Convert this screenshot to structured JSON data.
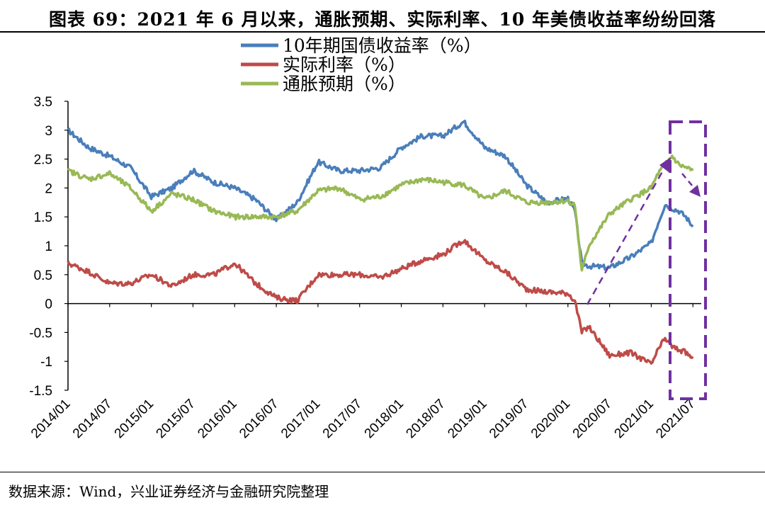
{
  "header": {
    "title": "图表 69：2021 年 6 月以来，通胀预期、实际利率、10 年美债收益率纷纷回落"
  },
  "footer": {
    "source": "数据来源：Wind，兴业证券经济与金融研究院整理"
  },
  "colors": {
    "yield": "#4a7ebb",
    "real": "#be4b48",
    "inflation": "#98b954",
    "annotation": "#7030a0"
  },
  "chart_data": {
    "type": "line",
    "title": "",
    "xlabel": "",
    "ylabel": "",
    "ylim": [
      -1.5,
      3.5
    ],
    "yticks": [
      "3.5",
      "3",
      "2.5",
      "2",
      "1.5",
      "1",
      "0.5",
      "0",
      "-0.5",
      "-1",
      "-1.5"
    ],
    "xticks": [
      "2014/01",
      "2014/07",
      "2015/01",
      "2015/07",
      "2016/01",
      "2016/07",
      "2017/01",
      "2017/07",
      "2018/01",
      "2018/07",
      "2019/01",
      "2019/07",
      "2020/01",
      "2020/07",
      "2021/01",
      "2021/07"
    ],
    "grid": false,
    "legend_position": "top",
    "x": [
      "2014/01",
      "2014/04",
      "2014/07",
      "2014/10",
      "2015/01",
      "2015/04",
      "2015/07",
      "2015/10",
      "2016/01",
      "2016/04",
      "2016/07",
      "2016/10",
      "2017/01",
      "2017/04",
      "2017/07",
      "2017/10",
      "2018/01",
      "2018/04",
      "2018/07",
      "2018/10",
      "2019/01",
      "2019/04",
      "2019/07",
      "2019/10",
      "2020/01",
      "2020/02",
      "2020/03",
      "2020/04",
      "2020/07",
      "2020/10",
      "2021/01",
      "2021/02",
      "2021/03",
      "2021/04",
      "2021/05",
      "2021/06",
      "2021/07"
    ],
    "series": [
      {
        "name": "10年期国债收益率（%）",
        "values": [
          3.0,
          2.7,
          2.55,
          2.35,
          1.85,
          2.0,
          2.3,
          2.1,
          2.0,
          1.8,
          1.45,
          1.75,
          2.45,
          2.3,
          2.3,
          2.35,
          2.7,
          2.9,
          2.9,
          3.15,
          2.7,
          2.55,
          2.05,
          1.75,
          1.82,
          1.6,
          0.7,
          0.65,
          0.62,
          0.8,
          1.05,
          1.4,
          1.72,
          1.65,
          1.6,
          1.5,
          1.33
        ],
        "color": "#4a7ebb"
      },
      {
        "name": "实际利率（%）",
        "values": [
          0.7,
          0.55,
          0.35,
          0.35,
          0.5,
          0.3,
          0.5,
          0.5,
          0.7,
          0.35,
          0.1,
          0.05,
          0.5,
          0.5,
          0.5,
          0.45,
          0.6,
          0.75,
          0.85,
          1.1,
          0.75,
          0.55,
          0.25,
          0.2,
          0.18,
          0.05,
          -0.5,
          -0.4,
          -0.9,
          -0.85,
          -1.05,
          -0.8,
          -0.6,
          -0.75,
          -0.8,
          -0.85,
          -0.95
        ],
        "color": "#be4b48"
      },
      {
        "name": "通胀预期（%）",
        "values": [
          2.3,
          2.15,
          2.25,
          2.0,
          1.6,
          1.9,
          1.8,
          1.6,
          1.5,
          1.5,
          1.5,
          1.6,
          1.95,
          2.0,
          1.8,
          1.85,
          2.05,
          2.15,
          2.1,
          2.05,
          1.8,
          1.95,
          1.75,
          1.75,
          1.78,
          1.7,
          0.55,
          1.0,
          1.55,
          1.8,
          2.0,
          2.25,
          2.4,
          2.55,
          2.4,
          2.35,
          2.3
        ],
        "color": "#98b954"
      }
    ]
  }
}
